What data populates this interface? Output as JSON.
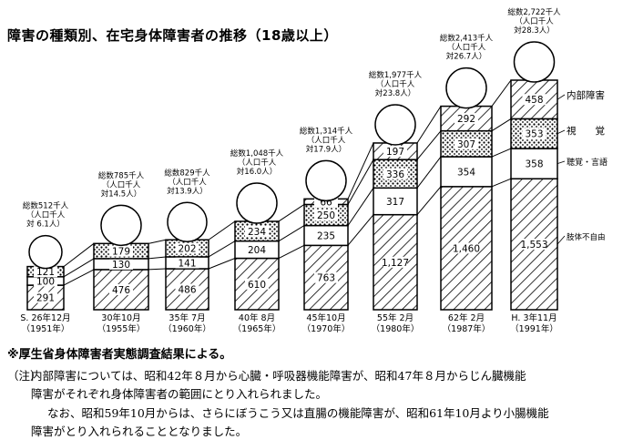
{
  "chart_data": {
    "type": "bar",
    "title": "障害の種類別、在宅身体障害者の推移（18歳以上）",
    "stacking": "stacked",
    "categories": [
      {
        "line1": "S. 26年12月",
        "line2": "（1951年）"
      },
      {
        "line1": "30年10月",
        "line2": "（1955年）"
      },
      {
        "line1": "35年 7月",
        "line2": "（1960年）"
      },
      {
        "line1": "40年 8月",
        "line2": "（1965年）"
      },
      {
        "line1": "45年10月",
        "line2": "（1970年）"
      },
      {
        "line1": "55年 2月",
        "line2": "（1980年）"
      },
      {
        "line1": "62年 2月",
        "line2": "（1987年）"
      },
      {
        "line1": "H. 3年11月",
        "line2": "（1991年）"
      }
    ],
    "series": [
      {
        "name": "肢体不自由",
        "values": [
          291,
          476,
          486,
          610,
          763,
          1127,
          1460,
          1553
        ]
      },
      {
        "name": "聴覚・言語",
        "values": [
          100,
          130,
          141,
          204,
          235,
          317,
          354,
          358
        ]
      },
      {
        "name": "視覚",
        "values": [
          121,
          179,
          202,
          234,
          250,
          336,
          307,
          353
        ]
      },
      {
        "name": "内部障害",
        "values": [
          null,
          null,
          null,
          null,
          66,
          197,
          292,
          458
        ]
      }
    ],
    "value_labels": [
      [
        "291",
        "100",
        "121",
        null
      ],
      [
        "476",
        "130",
        "179",
        null
      ],
      [
        "486",
        "141",
        "202",
        null
      ],
      [
        "610",
        "204",
        "234",
        null
      ],
      [
        "763",
        "235",
        "250",
        "66"
      ],
      [
        "1,127",
        "317",
        "336",
        "197"
      ],
      [
        "1,460",
        "354",
        "307",
        "292"
      ],
      [
        "1,553",
        "358",
        "353",
        "458"
      ]
    ],
    "totals": [
      {
        "line1": "総数512千人",
        "line2": "（人口千人",
        "line3": "対 6.1人）"
      },
      {
        "line1": "総数785千人",
        "line2": "（人口千人",
        "line3": "対14.5人）"
      },
      {
        "line1": "総数829千人",
        "line2": "（人口千人",
        "line3": "対13.9人）"
      },
      {
        "line1": "総数1,048千人",
        "line2": "（人口千人",
        "line3": "対16.0人）"
      },
      {
        "line1": "総数1,314千人",
        "line2": "（人口千人",
        "line3": "対17.9人）"
      },
      {
        "line1": "総数1,977千人",
        "line2": "（人口千人",
        "line3": "対23.8人）"
      },
      {
        "line1": "総数2,413千人",
        "line2": "（人口千人",
        "line3": "対26.7人）"
      },
      {
        "line1": "総数2,722千人",
        "line2": "（人口千人",
        "line3": "対28.3人）"
      }
    ],
    "legend_position": "right",
    "legend": {
      "internal": "内部障害",
      "visual": "視　　覚",
      "hearing": "聴覚・言語",
      "physical": "肢体不自由"
    },
    "grid": false,
    "ylim": [
      0,
      2722
    ]
  },
  "source_note": "※厚生省身体障害者実態調査結果による。",
  "notes": {
    "label": "（注）",
    "line1": "内部障害については、昭和42年８月から心臓・呼吸器機能障害が、昭和47年８月からじん臓機能",
    "line2": "障害がそれぞれ身体障害者の範囲にとり入れられました。",
    "line3": "なお、昭和59年10月からは、さらにぼうこう又は直腸の機能障害が、昭和61年10月より小腸機能",
    "line4": "障害がとり入れられることとなりました。"
  }
}
